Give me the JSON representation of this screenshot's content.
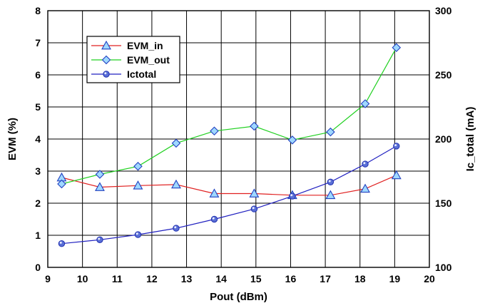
{
  "chart_data": {
    "type": "line",
    "xlabel": "Pout (dBm)",
    "ylabel": "EVM (%)",
    "y2label": "Ic_total (mA)",
    "xlim": [
      9,
      20
    ],
    "ylim": [
      0,
      8
    ],
    "y2lim": [
      100,
      300
    ],
    "x_ticks": [
      "9",
      "10",
      "11",
      "12",
      "13",
      "14",
      "15",
      "16",
      "17",
      "18",
      "19",
      "20"
    ],
    "y_ticks": [
      "0",
      "1",
      "2",
      "3",
      "4",
      "5",
      "6",
      "7",
      "8"
    ],
    "y2_ticks": [
      "100",
      "150",
      "200",
      "250",
      "300"
    ],
    "grid": true,
    "legend_position": "top-left",
    "series": [
      {
        "name": "EVM_in",
        "axis": "left",
        "color": "#e02020",
        "marker": "triangle",
        "marker_color": "#2040c0",
        "x": [
          9.4,
          10.5,
          11.6,
          12.7,
          13.8,
          14.95,
          16.05,
          17.15,
          18.15,
          19.05
        ],
        "values": [
          2.8,
          2.5,
          2.55,
          2.58,
          2.3,
          2.3,
          2.25,
          2.25,
          2.45,
          2.87
        ]
      },
      {
        "name": "EVM_out",
        "axis": "left",
        "color": "#20d020",
        "marker": "diamond",
        "marker_color": "#2040c0",
        "x": [
          9.4,
          10.5,
          11.6,
          12.7,
          13.8,
          14.95,
          16.05,
          17.15,
          18.15,
          19.05
        ],
        "values": [
          2.6,
          2.9,
          3.15,
          3.87,
          4.25,
          4.4,
          3.97,
          4.22,
          5.1,
          6.85
        ]
      },
      {
        "name": "Ictotal",
        "axis": "right",
        "color": "#2020c0",
        "marker": "circle",
        "marker_color": "#2030b0",
        "x": [
          9.4,
          10.5,
          11.6,
          12.7,
          13.8,
          14.95,
          16.05,
          17.15,
          18.15,
          19.05
        ],
        "values": [
          118.5,
          121.5,
          125.5,
          130.5,
          137.5,
          145.5,
          155.5,
          166.5,
          180.5,
          194.5
        ]
      }
    ]
  }
}
